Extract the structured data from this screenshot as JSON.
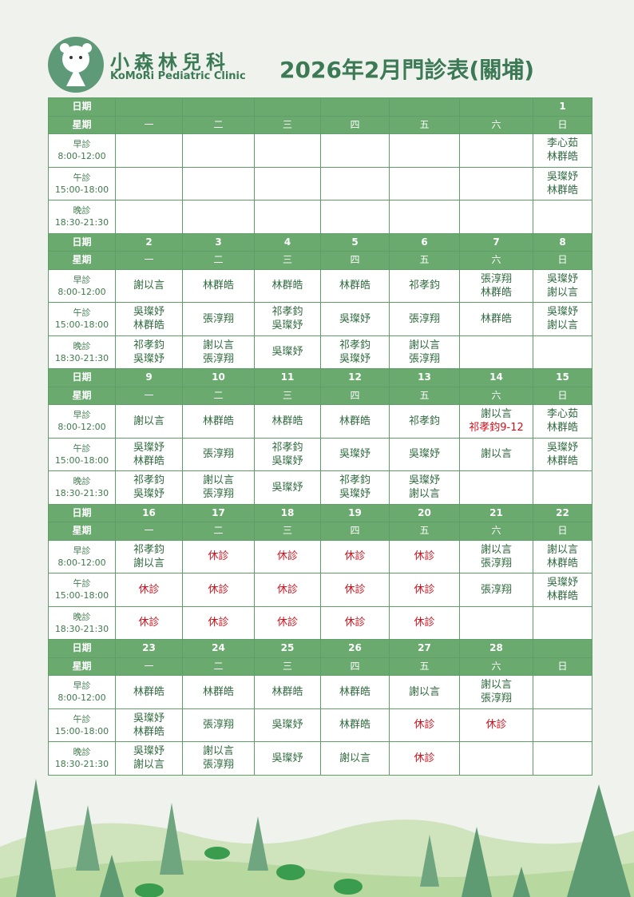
{
  "header": {
    "clinic_name": "小森林兒科",
    "clinic_name_en": "KoMoRi Pediatric Clinic",
    "title": "2026年2月門診表(關埔)"
  },
  "table": {
    "date_label": "日期",
    "weekday_label": "星期",
    "weekdays": [
      "一",
      "二",
      "三",
      "四",
      "五",
      "六",
      "日"
    ],
    "sessions": [
      {
        "name": "早診",
        "time": "8:00-12:00"
      },
      {
        "name": "午診",
        "time": "15:00-18:00"
      },
      {
        "name": "晚診",
        "time": "18:30-21:30"
      }
    ],
    "highlight_color": "#d0101b",
    "weeks": [
      {
        "dates": [
          null,
          null,
          null,
          null,
          null,
          null,
          1
        ],
        "sessions": [
          [
            [],
            [],
            [],
            [],
            [],
            [],
            [
              "李心茹",
              "林群皓"
            ]
          ],
          [
            [],
            [],
            [],
            [],
            [],
            [],
            [
              "吳璨妤",
              "林群皓"
            ]
          ],
          [
            [],
            [],
            [],
            [],
            [],
            [],
            []
          ]
        ]
      },
      {
        "dates": [
          2,
          3,
          4,
          5,
          6,
          7,
          8
        ],
        "sessions": [
          [
            [
              "謝以言"
            ],
            [
              "林群皓"
            ],
            [
              "林群皓"
            ],
            [
              "林群皓"
            ],
            [
              "祁孝鈞"
            ],
            [
              "張淳翔",
              "林群皓"
            ],
            [
              "吳璨妤",
              "謝以言"
            ]
          ],
          [
            [
              "吳璨妤",
              "林群皓"
            ],
            [
              "張淳翔"
            ],
            [
              "祁孝鈞",
              "吳璨妤"
            ],
            [
              "吳璨妤"
            ],
            [
              "張淳翔"
            ],
            [
              "林群皓"
            ],
            [
              "吳璨妤",
              "謝以言"
            ]
          ],
          [
            [
              "祁孝鈞",
              "吳璨妤"
            ],
            [
              "謝以言",
              "張淳翔"
            ],
            [
              "吳璨妤"
            ],
            [
              "祁孝鈞",
              "吳璨妤"
            ],
            [
              "謝以言",
              "張淳翔"
            ],
            [],
            []
          ]
        ]
      },
      {
        "dates": [
          9,
          10,
          11,
          12,
          13,
          14,
          15
        ],
        "sessions": [
          [
            [
              "謝以言"
            ],
            [
              "林群皓"
            ],
            [
              "林群皓"
            ],
            [
              "林群皓"
            ],
            [
              "祁孝鈞"
            ],
            [
              "謝以言",
              {
                "text": "祁孝鈞9-12",
                "highlight": true
              }
            ],
            [
              "李心茹",
              "林群皓"
            ]
          ],
          [
            [
              "吳璨妤",
              "林群皓"
            ],
            [
              "張淳翔"
            ],
            [
              "祁孝鈞",
              "吳璨妤"
            ],
            [
              "吳璨妤"
            ],
            [
              "吳璨妤"
            ],
            [
              "謝以言"
            ],
            [
              "吳璨妤",
              "林群皓"
            ]
          ],
          [
            [
              "祁孝鈞",
              "吳璨妤"
            ],
            [
              "謝以言",
              "張淳翔"
            ],
            [
              "吳璨妤"
            ],
            [
              "祁孝鈞",
              "吳璨妤"
            ],
            [
              "吳璨妤",
              "謝以言"
            ],
            [],
            []
          ]
        ]
      },
      {
        "dates": [
          16,
          17,
          18,
          19,
          20,
          21,
          22
        ],
        "sessions": [
          [
            [
              "祁孝鈞",
              "謝以言"
            ],
            [
              {
                "text": "休診",
                "highlight": true
              }
            ],
            [
              {
                "text": "休診",
                "highlight": true
              }
            ],
            [
              {
                "text": "休診",
                "highlight": true
              }
            ],
            [
              {
                "text": "休診",
                "highlight": true
              }
            ],
            [
              "謝以言",
              "張淳翔"
            ],
            [
              "謝以言",
              "林群皓"
            ]
          ],
          [
            [
              {
                "text": "休診",
                "highlight": true
              }
            ],
            [
              {
                "text": "休診",
                "highlight": true
              }
            ],
            [
              {
                "text": "休診",
                "highlight": true
              }
            ],
            [
              {
                "text": "休診",
                "highlight": true
              }
            ],
            [
              {
                "text": "休診",
                "highlight": true
              }
            ],
            [
              "張淳翔"
            ],
            [
              "吳璨妤",
              "林群皓"
            ]
          ],
          [
            [
              {
                "text": "休診",
                "highlight": true
              }
            ],
            [
              {
                "text": "休診",
                "highlight": true
              }
            ],
            [
              {
                "text": "休診",
                "highlight": true
              }
            ],
            [
              {
                "text": "休診",
                "highlight": true
              }
            ],
            [
              {
                "text": "休診",
                "highlight": true
              }
            ],
            [],
            []
          ]
        ]
      },
      {
        "dates": [
          23,
          24,
          25,
          26,
          27,
          28,
          null
        ],
        "sessions": [
          [
            [
              "林群皓"
            ],
            [
              "林群皓"
            ],
            [
              "林群皓"
            ],
            [
              "林群皓"
            ],
            [
              "謝以言"
            ],
            [
              "謝以言",
              "張淳翔"
            ],
            []
          ],
          [
            [
              "吳璨妤",
              "林群皓"
            ],
            [
              "張淳翔"
            ],
            [
              "吳璨妤"
            ],
            [
              "林群皓"
            ],
            [
              {
                "text": "休診",
                "highlight": true
              }
            ],
            [
              {
                "text": "休診",
                "highlight": true
              }
            ],
            []
          ],
          [
            [
              "吳璨妤",
              "謝以言"
            ],
            [
              "謝以言",
              "張淳翔"
            ],
            [
              "吳璨妤"
            ],
            [
              "謝以言"
            ],
            [
              {
                "text": "休診",
                "highlight": true
              }
            ],
            [],
            []
          ]
        ]
      }
    ]
  }
}
